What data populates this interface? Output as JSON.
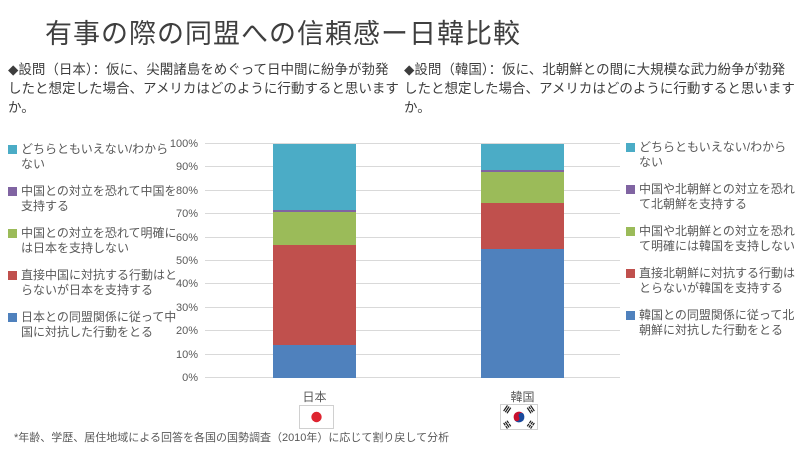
{
  "slide": {
    "title": "有事の際の同盟への信頼感ー日韓比較",
    "footnote": "*年齢、学歴、居住地域による回答を各国の国勢調査（2010年）に応じて割り戻して分析"
  },
  "questions": {
    "japan": "◆設問（日本）：仮に、尖閣諸島をめぐって日中間に紛争が勃発したと想定した場合、アメリカはどのように行動すると思いますか。",
    "korea": "◆設問（韓国）：仮に、北朝鮮との間に大規模な武力紛争が勃発したと想定した場合、アメリカはどのように行動すると思いますか。"
  },
  "colors": {
    "blue": "#4F81BD",
    "red": "#C0504D",
    "green": "#9BBB59",
    "purple": "#8064A2",
    "cyan": "#4BACC6",
    "grid": "#D9D9D9",
    "axis_text": "#595959",
    "title_text": "#3F3F3F",
    "flag_japan_red": "#DE2430",
    "flag_korea_red": "#C8102E",
    "flag_korea_blue": "#1B4A9C"
  },
  "axis": {
    "ticks": [
      "0%",
      "10%",
      "20%",
      "30%",
      "40%",
      "50%",
      "60%",
      "70%",
      "80%",
      "90%",
      "100%"
    ]
  },
  "chart_data": [
    {
      "type": "bar",
      "stacked": true,
      "title": "",
      "xlabel": "",
      "ylabel": "",
      "ylim": [
        0,
        100
      ],
      "grid": true,
      "legend_position": "left",
      "categories": [
        "日本"
      ],
      "series": [
        {
          "name": "日本との同盟関係に従って中国に対抗した行動をとる",
          "color_key": "blue",
          "values": [
            14
          ]
        },
        {
          "name": "直接中国に対抗する行動はとらないが日本を支持する",
          "color_key": "red",
          "values": [
            43
          ]
        },
        {
          "name": "中国との対立を恐れて明確には日本を支持しない",
          "color_key": "green",
          "values": [
            14
          ]
        },
        {
          "name": "中国との対立を恐れて中国を支持する",
          "color_key": "purple",
          "values": [
            1
          ]
        },
        {
          "name": "どちらともいえない/わからない",
          "color_key": "cyan",
          "values": [
            28
          ]
        }
      ]
    },
    {
      "type": "bar",
      "stacked": true,
      "title": "",
      "xlabel": "",
      "ylabel": "",
      "ylim": [
        0,
        100
      ],
      "grid": true,
      "legend_position": "right",
      "categories": [
        "韓国"
      ],
      "series": [
        {
          "name": "韓国との同盟関係に従って北朝鮮に対抗した行動をとる",
          "color_key": "blue",
          "values": [
            55
          ]
        },
        {
          "name": "直接北朝鮮に対抗する行動はとらないが韓国を支持する",
          "color_key": "red",
          "values": [
            20
          ]
        },
        {
          "name": "中国や北朝鮮との対立を恐れて明確には韓国を支持しない",
          "color_key": "green",
          "values": [
            13
          ]
        },
        {
          "name": "中国や北朝鮮との対立を恐れて北朝鮮を支持する",
          "color_key": "purple",
          "values": [
            1
          ]
        },
        {
          "name": "どちらともいえない/わからない",
          "color_key": "cyan",
          "values": [
            11
          ]
        }
      ]
    }
  ]
}
